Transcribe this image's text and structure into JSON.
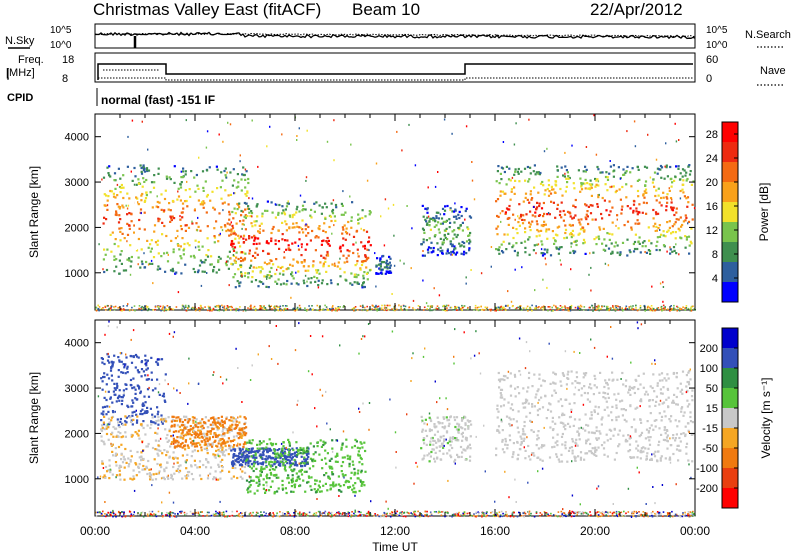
{
  "header": {
    "title": "Christmas Valley East (fitACF)",
    "beam": "Beam 10",
    "date": "22/Apr/2012"
  },
  "params_panel": {
    "nsky_label": "N.Sky",
    "nsearch_label": "N.Search",
    "nsky_ticks": [
      "10^5",
      "10^0"
    ],
    "nsearch_ticks": [
      "10^5",
      "10^0"
    ],
    "freq_label_1": "Freq.",
    "freq_label_2": "[MHz]",
    "freq_ticks": [
      "18",
      "8"
    ],
    "nave_label": "Nave",
    "nave_ticks": [
      "60",
      "0"
    ],
    "cpid_label": "CPID",
    "cpid_text": "normal (fast) -151 IF"
  },
  "colors": {
    "power_scale": [
      "#0000ff",
      "#2e5f9e",
      "#3f8f4f",
      "#79c44c",
      "#f2e12a",
      "#f9a11b",
      "#f46a12",
      "#ee2a10",
      "#ff0000"
    ],
    "velocity_scale": [
      "#0000cc",
      "#3350b8",
      "#2f8f42",
      "#57c43a",
      "#c8c8c8",
      "#f5a623",
      "#f07a10",
      "#e93f10",
      "#ff0000"
    ]
  },
  "chart_data": [
    {
      "type": "heatmap",
      "name": "power",
      "xlabel": "",
      "ylabel": "Slant Range [km]",
      "xlim": [
        "00:00",
        "24:00"
      ],
      "ylim": [
        180,
        4500
      ],
      "y_ticks": [
        1000,
        2000,
        3000,
        4000
      ],
      "x_ticks": [
        "00:00",
        "04:00",
        "08:00",
        "12:00",
        "16:00",
        "20:00",
        "00:00"
      ],
      "colorbar_label": "Power [dB]",
      "colorbar_ticks": [
        4,
        8,
        12,
        16,
        20,
        24,
        28
      ],
      "colorbar_range": [
        0,
        30
      ],
      "echo_regions": [
        {
          "t_start": 0.3,
          "t_end": 6.2,
          "r_min": 1000,
          "r_max": 3400,
          "peak_db": 24
        },
        {
          "t_start": 5.4,
          "t_end": 11.0,
          "r_min": 700,
          "r_max": 2600,
          "peak_db": 28
        },
        {
          "t_start": 11.2,
          "t_end": 11.8,
          "r_min": 1000,
          "r_max": 1400,
          "peak_db": 8
        },
        {
          "t_start": 13.0,
          "t_end": 15.0,
          "r_min": 1400,
          "r_max": 2500,
          "peak_db": 12
        },
        {
          "t_start": 16.0,
          "t_end": 23.9,
          "r_min": 1400,
          "r_max": 3400,
          "peak_db": 26
        }
      ]
    },
    {
      "type": "heatmap",
      "name": "velocity",
      "xlabel": "Time UT",
      "ylabel": "Slant Range [km]",
      "xlim": [
        "00:00",
        "24:00"
      ],
      "ylim": [
        180,
        4500
      ],
      "y_ticks": [
        1000,
        2000,
        3000,
        4000
      ],
      "x_ticks": [
        "00:00",
        "04:00",
        "08:00",
        "12:00",
        "16:00",
        "20:00",
        "00:00"
      ],
      "colorbar_label": "Velocity [m s⁻¹]",
      "colorbar_ticks": [
        200,
        100,
        50,
        15,
        -15,
        -50,
        -100,
        -200
      ],
      "echo_regions": [
        {
          "t_start": 0.2,
          "t_end": 2.8,
          "r_min": 2200,
          "r_max": 3800,
          "velocity": 150
        },
        {
          "t_start": 0.2,
          "t_end": 6.0,
          "r_min": 1000,
          "r_max": 2400,
          "velocity": -10
        },
        {
          "t_start": 3.0,
          "t_end": 6.0,
          "r_min": 1700,
          "r_max": 2400,
          "velocity": -60
        },
        {
          "t_start": 5.4,
          "t_end": 8.5,
          "r_min": 1300,
          "r_max": 1700,
          "velocity": 180
        },
        {
          "t_start": 6.0,
          "t_end": 10.8,
          "r_min": 700,
          "r_max": 1900,
          "velocity": 40
        },
        {
          "t_start": 13.0,
          "t_end": 15.0,
          "r_min": 1400,
          "r_max": 2400,
          "velocity": 5
        },
        {
          "t_start": 16.0,
          "t_end": 23.9,
          "r_min": 1400,
          "r_max": 3400,
          "velocity": 0
        }
      ]
    }
  ]
}
